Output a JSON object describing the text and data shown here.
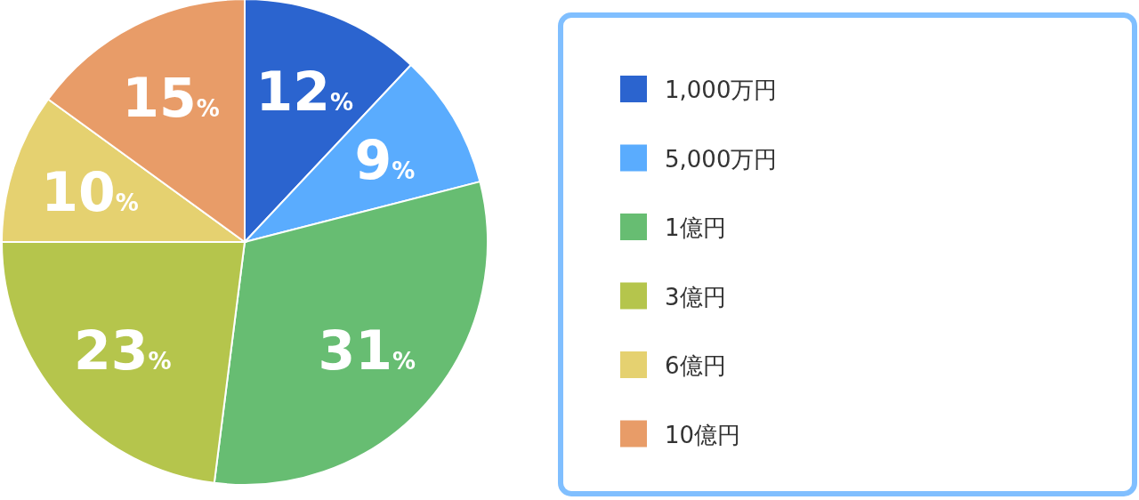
{
  "chart_data": {
    "type": "pie",
    "categories": [
      "1,000万円",
      "5,000万円",
      "1億円",
      "3億円",
      "6億円",
      "10億円"
    ],
    "values": [
      12,
      9,
      31,
      23,
      10,
      15
    ],
    "colors": [
      "#2b64cf",
      "#5aacfe",
      "#67bd72",
      "#b5c54c",
      "#e5d170",
      "#e89c68"
    ],
    "value_labels": [
      "12%",
      "9%",
      "31%",
      "23%",
      "10%",
      "15%"
    ],
    "legend": "right"
  }
}
